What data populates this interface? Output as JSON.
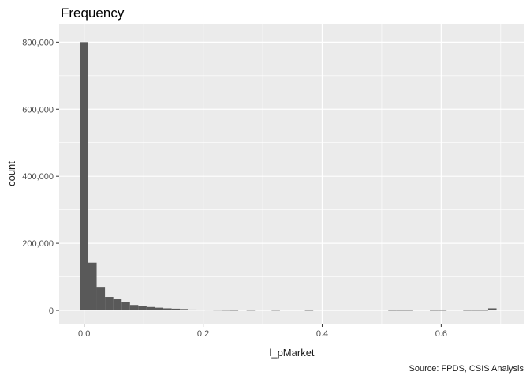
{
  "chart_data": {
    "type": "bar",
    "title": "Frequency",
    "xlabel": "l_pMarket",
    "ylabel": "count",
    "caption": "Source: FPDS, CSIS Analysis",
    "xlim": [
      -0.042,
      0.74
    ],
    "ylim": [
      -40000,
      855000
    ],
    "x_ticks": [
      0.0,
      0.2,
      0.4,
      0.6
    ],
    "x_tick_labels": [
      "0.0",
      "0.2",
      "0.4",
      "0.6"
    ],
    "y_ticks": [
      0,
      200000,
      400000,
      600000,
      800000
    ],
    "y_tick_labels": [
      "0",
      "200,000",
      "400,000",
      "600,000",
      "800,000"
    ],
    "grid": true,
    "legend": "none",
    "bar_color": "#595959",
    "panel_color": "#ebebeb",
    "grid_color": "#ffffff",
    "bin_width": 0.014,
    "bins": [
      {
        "x": 0.0,
        "count": 800000
      },
      {
        "x": 0.014,
        "count": 142000
      },
      {
        "x": 0.028,
        "count": 68000
      },
      {
        "x": 0.042,
        "count": 40000
      },
      {
        "x": 0.056,
        "count": 33000
      },
      {
        "x": 0.07,
        "count": 24000
      },
      {
        "x": 0.084,
        "count": 16000
      },
      {
        "x": 0.098,
        "count": 12000
      },
      {
        "x": 0.112,
        "count": 10000
      },
      {
        "x": 0.126,
        "count": 8000
      },
      {
        "x": 0.14,
        "count": 6000
      },
      {
        "x": 0.154,
        "count": 5000
      },
      {
        "x": 0.168,
        "count": 4000
      },
      {
        "x": 0.182,
        "count": 2500
      },
      {
        "x": 0.196,
        "count": 2000
      },
      {
        "x": 0.21,
        "count": 1800
      },
      {
        "x": 0.224,
        "count": 1500
      },
      {
        "x": 0.238,
        "count": 1200
      },
      {
        "x": 0.252,
        "count": 1000
      },
      {
        "x": 0.28,
        "count": 1200
      },
      {
        "x": 0.322,
        "count": 1200
      },
      {
        "x": 0.378,
        "count": 1000
      },
      {
        "x": 0.518,
        "count": 1000
      },
      {
        "x": 0.532,
        "count": 1000
      },
      {
        "x": 0.546,
        "count": 1000
      },
      {
        "x": 0.588,
        "count": 1000
      },
      {
        "x": 0.602,
        "count": 1000
      },
      {
        "x": 0.644,
        "count": 1000
      },
      {
        "x": 0.658,
        "count": 1000
      },
      {
        "x": 0.672,
        "count": 1000
      },
      {
        "x": 0.686,
        "count": 6000
      }
    ]
  }
}
